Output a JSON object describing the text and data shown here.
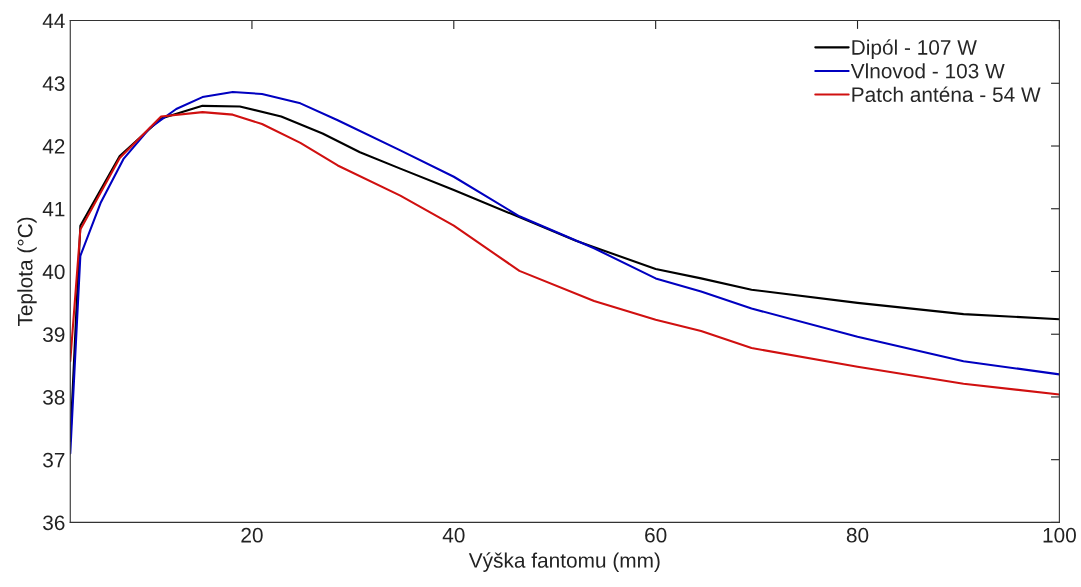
{
  "chart_data": {
    "type": "line",
    "xlabel": "Výška fantomu (mm)",
    "ylabel": "Teplota (°C)",
    "xlim": [
      2,
      100
    ],
    "xticks": [
      20,
      40,
      60,
      80,
      100
    ],
    "ylim": [
      36,
      44
    ],
    "yticks": [
      36,
      37,
      38,
      39,
      40,
      41,
      42,
      43,
      44
    ],
    "grid": false,
    "legend": "top right",
    "marker": "none",
    "line_style": "solid",
    "series": [
      {
        "name": "Dipól - 107 W",
        "color": "#000000",
        "x": [
          2,
          3,
          6.9,
          11,
          15.1,
          18.8,
          22.9,
          27,
          30.7,
          34.7,
          40,
          52.1,
          60,
          64.5,
          69.5,
          80,
          90.5,
          100
        ],
        "values": [
          37.3,
          40.73,
          41.84,
          42.44,
          42.64,
          42.63,
          42.47,
          42.2,
          41.9,
          41.64,
          41.3,
          40.49,
          40.04,
          39.89,
          39.71,
          39.5,
          39.32,
          39.24
        ]
      },
      {
        "name": "Vlnovod - 103 W",
        "color": "#0000c0",
        "x": [
          2,
          3,
          5,
          7.3,
          9.9,
          12.5,
          15.1,
          18.1,
          21,
          24.8,
          28.5,
          34.7,
          40,
          46.5,
          53.9,
          60,
          64.5,
          69.5,
          80,
          90.5,
          100
        ],
        "values": [
          37.1,
          40.25,
          41.09,
          41.8,
          42.29,
          42.59,
          42.78,
          42.86,
          42.83,
          42.68,
          42.41,
          41.93,
          41.51,
          40.88,
          40.37,
          39.89,
          39.68,
          39.41,
          38.96,
          38.57,
          38.36
        ]
      },
      {
        "name": "Patch anténa - 54 W",
        "color": "#d01010",
        "x": [
          2,
          3,
          6.9,
          11,
          15.1,
          18.1,
          21,
          24.8,
          28.5,
          34.7,
          40,
          46.5,
          53.9,
          60,
          64.5,
          69.5,
          80,
          90.5,
          100
        ],
        "values": [
          38.57,
          40.67,
          41.81,
          42.47,
          42.54,
          42.5,
          42.35,
          42.05,
          41.69,
          41.21,
          40.73,
          40.01,
          39.53,
          39.23,
          39.05,
          38.78,
          38.48,
          38.21,
          38.04
        ]
      }
    ]
  }
}
